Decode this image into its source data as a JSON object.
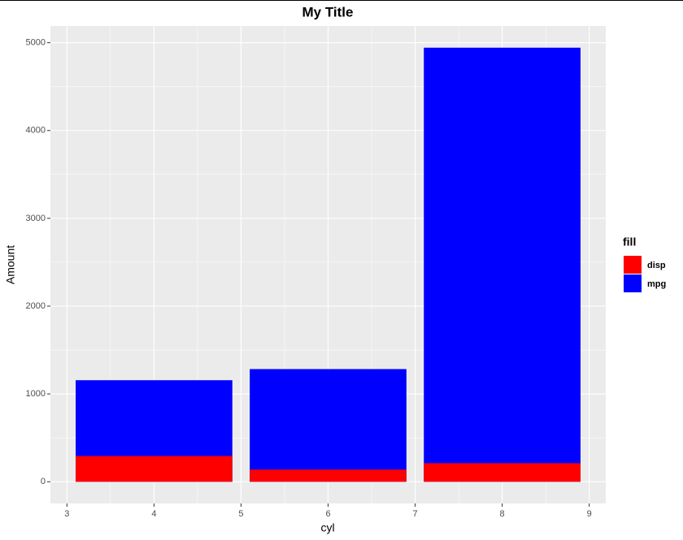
{
  "chart_data": {
    "type": "bar",
    "title": "My Title",
    "x_label": "cyl",
    "y_label": "Amount",
    "x": [
      4,
      6,
      8
    ],
    "bar_width": 1.8,
    "series": [
      {
        "name": "disp",
        "color": "#ff0000",
        "values": [
          293.3,
          138.2,
          211.4
        ]
      },
      {
        "name": "mpg",
        "color": "#0000ff",
        "values": [
          1156.5,
          1283.2,
          4943.4
        ]
      }
    ],
    "xlim": [
      2.81,
      9.19
    ],
    "xticks": [
      3,
      4,
      5,
      6,
      7,
      8,
      9
    ],
    "ylim": [
      -247.2,
      5190.6
    ],
    "yticks": [
      0,
      1000,
      2000,
      3000,
      4000,
      5000
    ],
    "grid": true,
    "legend_title": "fill",
    "legend_position": "right"
  }
}
